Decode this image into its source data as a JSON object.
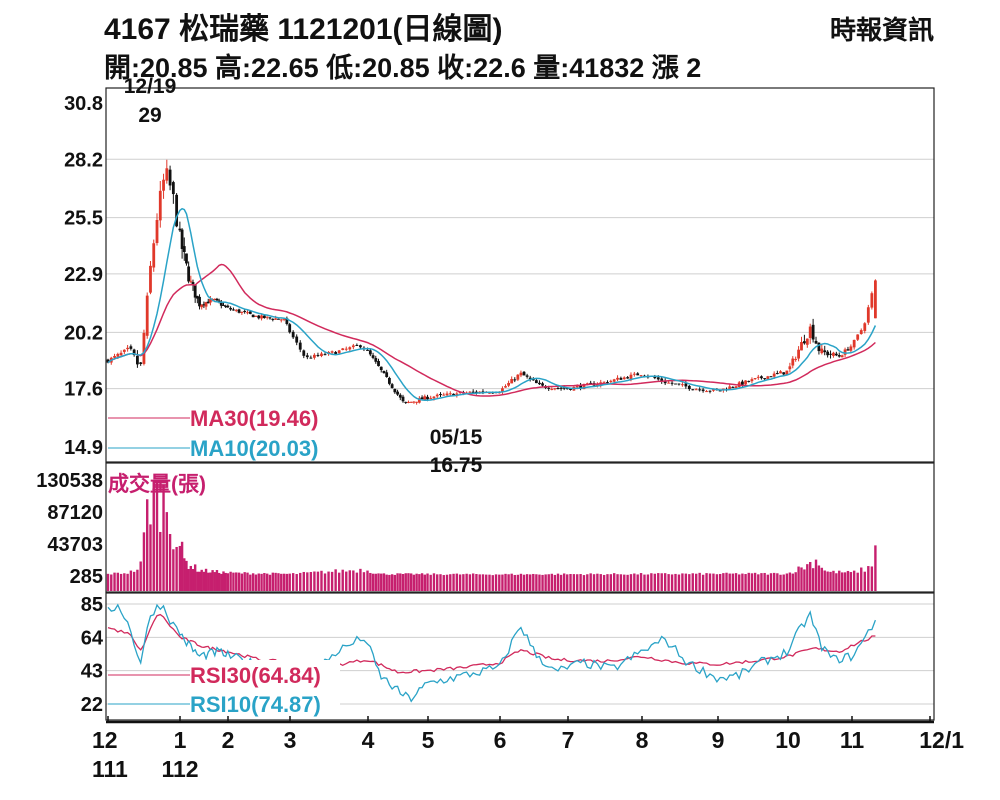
{
  "header": {
    "title": "4167  松瑞藥 1121201(日線圖)",
    "source": "時報資訊",
    "quote": "開:20.85 高:22.65 低:20.85 收:22.6 量:41832 漲 2"
  },
  "colors": {
    "up": "#e0382a",
    "down": "#111111",
    "ma30": "#d12a5c",
    "ma10": "#2aa3c7",
    "volume": "#c61f6e",
    "rsi30": "#d12a5c",
    "rsi10": "#2aa3c7",
    "grid": "#cfcfcf"
  },
  "chart_data": [
    {
      "type": "candlestick",
      "panel": "price",
      "yticks": [
        "30.8",
        "28.2",
        "25.5",
        "22.9",
        "20.2",
        "17.6",
        "14.9"
      ],
      "ylim": [
        14.9,
        30.8
      ],
      "months": [
        "12",
        "1",
        "2",
        "3",
        "4",
        "5",
        "6",
        "7",
        "8",
        "9",
        "10",
        "11",
        "12/1"
      ],
      "year_labels": [
        "111",
        "112"
      ],
      "annotations": [
        {
          "date": "12/19",
          "value": "29",
          "label": "12/19 29"
        },
        {
          "date": "05/15",
          "value": "16.75",
          "label": "05/15 16.75"
        }
      ],
      "anchors": [
        {
          "m": 0.0,
          "p": 18.9
        },
        {
          "m": 0.3,
          "p": 19.4
        },
        {
          "m": 0.45,
          "p": 18.5
        },
        {
          "m": 0.6,
          "p": 23.5
        },
        {
          "m": 0.7,
          "p": 26.0
        },
        {
          "m": 0.8,
          "p": 27.6
        },
        {
          "m": 0.9,
          "p": 26.5
        },
        {
          "m": 1.0,
          "p": 24.5
        },
        {
          "m": 1.2,
          "p": 22.6
        },
        {
          "m": 1.4,
          "p": 21.5
        },
        {
          "m": 1.7,
          "p": 21.7
        },
        {
          "m": 2.0,
          "p": 21.3
        },
        {
          "m": 2.5,
          "p": 20.9
        },
        {
          "m": 2.9,
          "p": 20.8
        },
        {
          "m": 3.2,
          "p": 19.0
        },
        {
          "m": 3.6,
          "p": 19.3
        },
        {
          "m": 3.9,
          "p": 19.6
        },
        {
          "m": 4.0,
          "p": 19.3
        },
        {
          "m": 4.3,
          "p": 18.1
        },
        {
          "m": 4.6,
          "p": 16.9
        },
        {
          "m": 5.0,
          "p": 17.2
        },
        {
          "m": 5.5,
          "p": 17.4
        },
        {
          "m": 6.0,
          "p": 17.5
        },
        {
          "m": 6.3,
          "p": 18.3
        },
        {
          "m": 6.6,
          "p": 17.7
        },
        {
          "m": 7.0,
          "p": 17.6
        },
        {
          "m": 7.5,
          "p": 17.9
        },
        {
          "m": 8.0,
          "p": 18.3
        },
        {
          "m": 8.3,
          "p": 17.9
        },
        {
          "m": 8.7,
          "p": 17.6
        },
        {
          "m": 9.0,
          "p": 17.5
        },
        {
          "m": 9.5,
          "p": 18.0
        },
        {
          "m": 10.0,
          "p": 18.4
        },
        {
          "m": 10.2,
          "p": 19.6
        },
        {
          "m": 10.35,
          "p": 20.4
        },
        {
          "m": 10.5,
          "p": 19.3
        },
        {
          "m": 10.8,
          "p": 19.1
        },
        {
          "m": 11.0,
          "p": 19.6
        },
        {
          "m": 11.15,
          "p": 20.5
        },
        {
          "m": 11.3,
          "p": 22.6
        }
      ],
      "series": [
        {
          "name": "MA30(19.46)",
          "value": "19.46"
        },
        {
          "name": "MA10(20.03)",
          "value": "20.03"
        }
      ]
    },
    {
      "type": "bar",
      "panel": "volume",
      "title": "成交量(張)",
      "yticks": [
        "130538",
        "87120",
        "43703",
        "285"
      ],
      "ylim": [
        285,
        130538
      ],
      "anchors": [
        {
          "m": 0.0,
          "v": 3000
        },
        {
          "m": 0.3,
          "v": 5000
        },
        {
          "m": 0.45,
          "v": 12000
        },
        {
          "m": 0.55,
          "v": 90000
        },
        {
          "m": 0.62,
          "v": 125000
        },
        {
          "m": 0.72,
          "v": 110000
        },
        {
          "m": 0.82,
          "v": 95000
        },
        {
          "m": 0.92,
          "v": 60000
        },
        {
          "m": 1.1,
          "v": 20000
        },
        {
          "m": 1.4,
          "v": 8000
        },
        {
          "m": 2.0,
          "v": 4500
        },
        {
          "m": 3.0,
          "v": 3000
        },
        {
          "m": 3.95,
          "v": 9000
        },
        {
          "m": 4.2,
          "v": 3000
        },
        {
          "m": 6.0,
          "v": 2500
        },
        {
          "m": 10.0,
          "v": 3500
        },
        {
          "m": 10.3,
          "v": 15000
        },
        {
          "m": 10.45,
          "v": 22000
        },
        {
          "m": 10.6,
          "v": 6000
        },
        {
          "m": 11.0,
          "v": 5000
        },
        {
          "m": 11.25,
          "v": 12000
        },
        {
          "m": 11.3,
          "v": 41832
        }
      ]
    },
    {
      "type": "line",
      "panel": "rsi",
      "yticks": [
        "85",
        "64",
        "43",
        "22"
      ],
      "ylim": [
        22,
        85
      ],
      "series": [
        {
          "name": "RSI30(64.84)",
          "value": "64.84",
          "anchors": [
            {
              "m": 0.0,
              "v": 70
            },
            {
              "m": 0.3,
              "v": 66
            },
            {
              "m": 0.45,
              "v": 55
            },
            {
              "m": 0.7,
              "v": 80
            },
            {
              "m": 1.0,
              "v": 64
            },
            {
              "m": 1.5,
              "v": 58
            },
            {
              "m": 2.0,
              "v": 55
            },
            {
              "m": 2.5,
              "v": 50
            },
            {
              "m": 3.0,
              "v": 48
            },
            {
              "m": 3.5,
              "v": 46
            },
            {
              "m": 4.0,
              "v": 50
            },
            {
              "m": 4.5,
              "v": 42
            },
            {
              "m": 5.0,
              "v": 43
            },
            {
              "m": 5.5,
              "v": 45
            },
            {
              "m": 6.0,
              "v": 48
            },
            {
              "m": 6.3,
              "v": 56
            },
            {
              "m": 6.8,
              "v": 50
            },
            {
              "m": 7.5,
              "v": 49
            },
            {
              "m": 8.0,
              "v": 52
            },
            {
              "m": 8.5,
              "v": 48
            },
            {
              "m": 9.0,
              "v": 47
            },
            {
              "m": 9.5,
              "v": 49
            },
            {
              "m": 10.0,
              "v": 52
            },
            {
              "m": 10.4,
              "v": 57
            },
            {
              "m": 10.8,
              "v": 55
            },
            {
              "m": 11.3,
              "v": 64.84
            }
          ]
        },
        {
          "name": "RSI10(74.87)",
          "value": "74.87",
          "anchors": [
            {
              "m": 0.0,
              "v": 80
            },
            {
              "m": 0.15,
              "v": 85
            },
            {
              "m": 0.3,
              "v": 70
            },
            {
              "m": 0.45,
              "v": 48
            },
            {
              "m": 0.6,
              "v": 80
            },
            {
              "m": 0.75,
              "v": 85
            },
            {
              "m": 0.9,
              "v": 72
            },
            {
              "m": 1.1,
              "v": 62
            },
            {
              "m": 1.4,
              "v": 52
            },
            {
              "m": 1.8,
              "v": 55
            },
            {
              "m": 2.2,
              "v": 50
            },
            {
              "m": 2.6,
              "v": 45
            },
            {
              "m": 3.0,
              "v": 38
            },
            {
              "m": 3.3,
              "v": 42
            },
            {
              "m": 3.6,
              "v": 55
            },
            {
              "m": 3.95,
              "v": 64
            },
            {
              "m": 4.2,
              "v": 40
            },
            {
              "m": 4.5,
              "v": 30
            },
            {
              "m": 4.7,
              "v": 25
            },
            {
              "m": 5.0,
              "v": 35
            },
            {
              "m": 5.5,
              "v": 40
            },
            {
              "m": 6.0,
              "v": 45
            },
            {
              "m": 6.3,
              "v": 72
            },
            {
              "m": 6.5,
              "v": 55
            },
            {
              "m": 6.8,
              "v": 42
            },
            {
              "m": 7.2,
              "v": 48
            },
            {
              "m": 7.6,
              "v": 44
            },
            {
              "m": 8.0,
              "v": 55
            },
            {
              "m": 8.3,
              "v": 63
            },
            {
              "m": 8.6,
              "v": 48
            },
            {
              "m": 9.0,
              "v": 38
            },
            {
              "m": 9.3,
              "v": 40
            },
            {
              "m": 9.6,
              "v": 48
            },
            {
              "m": 10.0,
              "v": 55
            },
            {
              "m": 10.2,
              "v": 70
            },
            {
              "m": 10.35,
              "v": 78
            },
            {
              "m": 10.5,
              "v": 60
            },
            {
              "m": 10.7,
              "v": 50
            },
            {
              "m": 11.0,
              "v": 52
            },
            {
              "m": 11.15,
              "v": 62
            },
            {
              "m": 11.3,
              "v": 74.87
            }
          ]
        }
      ]
    }
  ]
}
